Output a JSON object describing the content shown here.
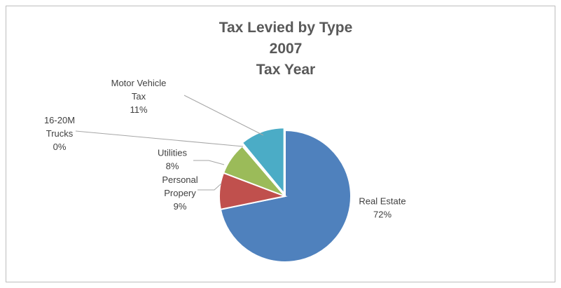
{
  "chart_data": {
    "type": "pie",
    "title_lines": [
      "Tax Levied by Type",
      "2007",
      "Tax Year"
    ],
    "slices": [
      {
        "label_lines": [
          "Real Estate",
          "72%"
        ],
        "value": 72,
        "color": "#4f81bd"
      },
      {
        "label_lines": [
          "Personal",
          "Propery",
          "9%"
        ],
        "value": 9,
        "color": "#c0504d"
      },
      {
        "label_lines": [
          "Utilities",
          "8%"
        ],
        "value": 8,
        "color": "#9bbb59"
      },
      {
        "label_lines": [
          "16-20M",
          "Trucks",
          "0%"
        ],
        "value": 0.3,
        "color": "#8064a2"
      },
      {
        "label_lines": [
          "Motor Vehicle",
          "Tax",
          "11%"
        ],
        "value": 11,
        "color": "#4bacc6"
      }
    ],
    "legend": "none",
    "start": "12 o'clock, clockwise"
  }
}
